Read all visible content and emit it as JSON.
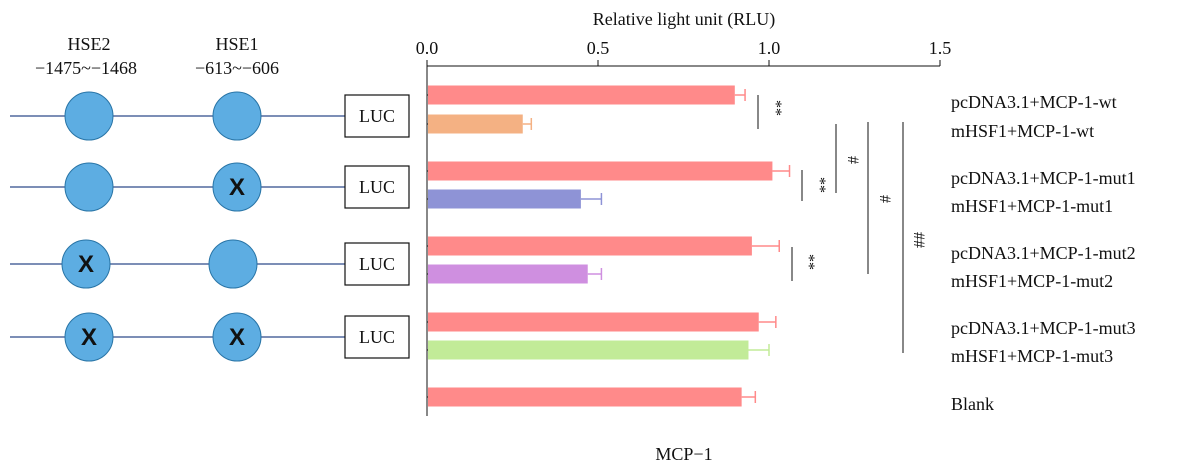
{
  "constructs": {
    "site_labels": [
      {
        "name": "HSE2",
        "range": "−1475~−1468"
      },
      {
        "name": "HSE1",
        "range": "−613~−606"
      }
    ],
    "reporter_label": "LUC",
    "mutation_mark": "X",
    "rows": [
      {
        "hse2_mutated": false,
        "hse1_mutated": false
      },
      {
        "hse2_mutated": false,
        "hse1_mutated": true
      },
      {
        "hse2_mutated": true,
        "hse1_mutated": false
      },
      {
        "hse2_mutated": true,
        "hse1_mutated": true
      }
    ],
    "colors": {
      "site": "#5dade2",
      "site_stroke": "#2874a6",
      "line": "#2e4a8a"
    }
  },
  "chart_data": {
    "type": "bar",
    "orientation": "horizontal",
    "title": "Relative light unit (RLU)",
    "xlabel": "MCP−1",
    "xlim": [
      0,
      1.5
    ],
    "ticks": [
      {
        "value": 0,
        "label": "0.0"
      },
      {
        "value": 0.5,
        "label": "0.5"
      },
      {
        "value": 1.0,
        "label": "1.0"
      },
      {
        "value": 1.5,
        "label": "1.5"
      }
    ],
    "categories": [
      "pcDNA3.1+MCP-1-wt",
      "mHSF1+MCP-1-wt",
      "pcDNA3.1+MCP-1-mut1",
      "mHSF1+MCP-1-mut1",
      "pcDNA3.1+MCP-1-mut2",
      "mHSF1+MCP-1-mut2",
      "pcDNA3.1+MCP-1-mut3",
      "mHSF1+MCP-1-mut3",
      "Blank"
    ],
    "values": [
      0.9,
      0.28,
      1.01,
      0.45,
      0.95,
      0.47,
      0.97,
      0.94,
      0.92
    ],
    "errors": [
      0.03,
      0.025,
      0.05,
      0.06,
      0.08,
      0.04,
      0.05,
      0.06,
      0.04
    ],
    "colors": [
      "#ff8a8a",
      "#f4b183",
      "#ff8a8a",
      "#8e93d6",
      "#ff8a8a",
      "#cf8fe0",
      "#ff8a8a",
      "#c2eb98",
      "#ff8a8a"
    ],
    "significance": [
      {
        "rows": [
          0,
          1
        ],
        "label": "**"
      },
      {
        "rows": [
          2,
          3
        ],
        "label": "**"
      },
      {
        "rows": [
          4,
          5
        ],
        "label": "**"
      },
      {
        "rows": [
          1,
          3
        ],
        "label": "#"
      },
      {
        "rows": [
          1,
          5
        ],
        "label": "#"
      },
      {
        "rows": [
          1,
          7
        ],
        "label": "##"
      }
    ]
  }
}
